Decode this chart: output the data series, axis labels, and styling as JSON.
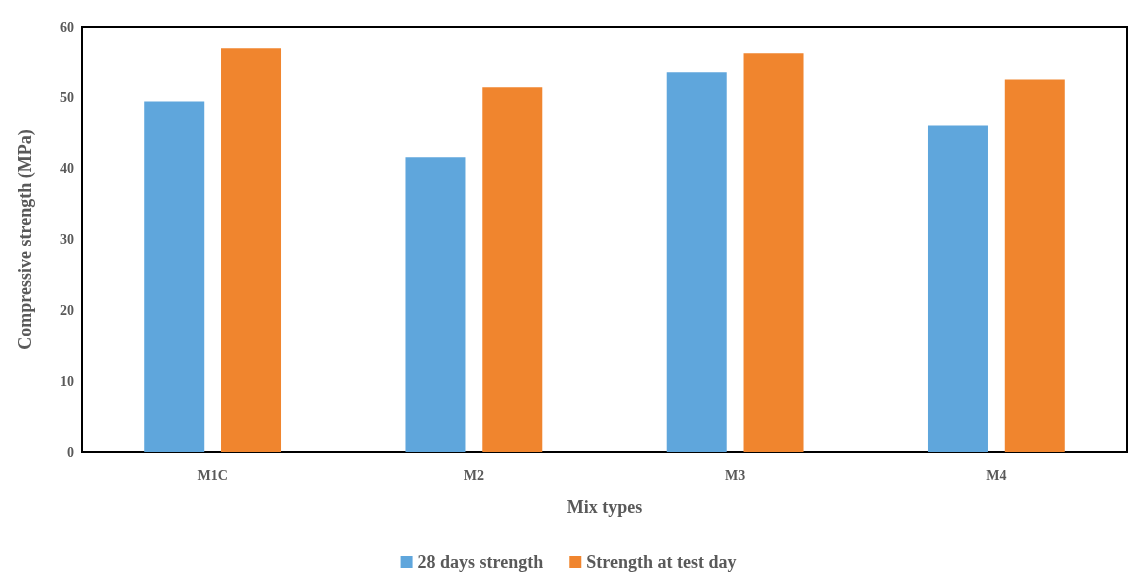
{
  "chart_data": {
    "type": "bar",
    "xlabel": "Mix types",
    "ylabel": "Compressive strength (MPa)",
    "categories": [
      "M1C",
      "M2",
      "M3",
      "M4"
    ],
    "series": [
      {
        "name": "28 days strength",
        "color": "#5fa6dc",
        "values": [
          49.5,
          41.6,
          53.6,
          46.1
        ]
      },
      {
        "name": "Strength at test day",
        "color": "#f0852e",
        "values": [
          57.0,
          51.5,
          56.3,
          52.6
        ]
      }
    ],
    "ylim": [
      0,
      60
    ],
    "yticks": [
      0,
      10,
      20,
      30,
      40,
      50,
      60
    ],
    "grid": false,
    "legend": "bottom"
  }
}
